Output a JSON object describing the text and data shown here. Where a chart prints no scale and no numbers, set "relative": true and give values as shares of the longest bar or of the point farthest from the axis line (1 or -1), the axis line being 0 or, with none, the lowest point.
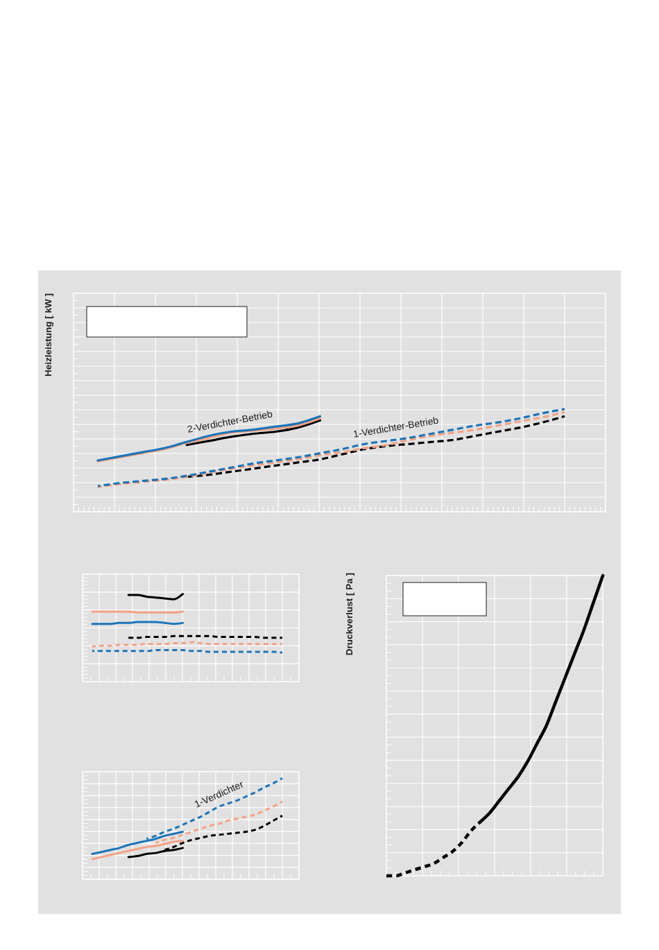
{
  "chart_data": [
    {
      "type": "line",
      "ylabel": "Heizleistung [ kW ]",
      "relative": true,
      "grid": true,
      "annotations": [
        "2-Verdichter-Betrieb",
        "1-Verdichter-Betrieb"
      ],
      "categories": [
        null,
        null,
        null,
        null,
        null,
        null,
        null,
        null,
        null,
        null,
        null,
        null,
        null,
        null,
        null,
        null,
        null,
        null,
        null,
        null,
        null,
        null
      ],
      "series": [
        {
          "color": "#000000",
          "line_style": "dashed",
          "values": [
            null,
            null,
            null,
            null,
            0.34,
            0.36,
            0.39,
            0.42,
            0.45,
            0.48,
            0.51,
            0.56,
            0.61,
            0.64,
            0.66,
            0.68,
            0.7,
            0.74,
            0.78,
            0.82,
            0.87,
            0.93
          ]
        },
        {
          "color": "#f4a283",
          "line_style": "dashed",
          "values": [
            0.24,
            0.27,
            0.29,
            0.31,
            0.34,
            0.38,
            0.42,
            0.45,
            0.48,
            0.51,
            0.55,
            0.58,
            0.62,
            0.65,
            0.7,
            0.74,
            0.77,
            0.8,
            0.84,
            0.88,
            0.92,
            0.97
          ]
        },
        {
          "color": "#1a75b9",
          "line_style": "dashed",
          "values": [
            0.25,
            0.28,
            0.3,
            0.32,
            0.35,
            0.39,
            0.43,
            0.47,
            0.5,
            0.53,
            0.57,
            0.61,
            0.66,
            0.69,
            0.72,
            0.76,
            0.8,
            0.84,
            0.87,
            0.91,
            0.96,
            1
          ]
        },
        {
          "color": "#000000",
          "line_style": "solid",
          "values": [
            null,
            null,
            null,
            null,
            0.65,
            0.69,
            0.73,
            0.76,
            0.78,
            0.82,
            0.89,
            null,
            null,
            null,
            null,
            null,
            null,
            null,
            null,
            null,
            null,
            null
          ]
        },
        {
          "color": "#f4a283",
          "line_style": "solid",
          "values": [
            0.49,
            0.53,
            0.57,
            0.61,
            0.67,
            0.72,
            0.77,
            0.79,
            0.81,
            0.84,
            0.91,
            null,
            null,
            null,
            null,
            null,
            null,
            null,
            null,
            null,
            null,
            null
          ]
        },
        {
          "color": "#1a75b9",
          "line_style": "solid",
          "values": [
            0.5,
            0.54,
            0.58,
            0.62,
            0.68,
            0.74,
            0.78,
            0.8,
            0.83,
            0.86,
            0.93,
            null,
            null,
            null,
            null,
            null,
            null,
            null,
            null,
            null,
            null,
            null
          ]
        }
      ]
    },
    {
      "type": "line",
      "relative": true,
      "grid": true,
      "categories": [
        null,
        null,
        null,
        null,
        null,
        null,
        null,
        null,
        null,
        null,
        null,
        null,
        null,
        null,
        null,
        null,
        null,
        null,
        null,
        null,
        null,
        null
      ],
      "series": [
        {
          "color": "#000000",
          "line_style": "dashed",
          "values": [
            null,
            null,
            null,
            null,
            0.5,
            0.5,
            0.51,
            0.51,
            0.51,
            0.52,
            0.52,
            0.52,
            0.52,
            0.52,
            0.51,
            0.51,
            0.51,
            0.51,
            0.51,
            0.5,
            0.5,
            0.5
          ]
        },
        {
          "color": "#f4a283",
          "line_style": "dashed",
          "values": [
            0.4,
            0.41,
            0.41,
            0.42,
            0.42,
            0.42,
            0.43,
            0.43,
            0.43,
            0.44,
            0.44,
            0.45,
            0.44,
            0.43,
            0.43,
            0.43,
            0.43,
            0.43,
            0.43,
            0.43,
            0.43,
            0.43
          ]
        },
        {
          "color": "#1a75b9",
          "line_style": "dashed",
          "values": [
            0.35,
            0.35,
            0.35,
            0.35,
            0.35,
            0.35,
            0.35,
            0.36,
            0.36,
            0.36,
            0.36,
            0.35,
            0.35,
            0.34,
            0.34,
            0.34,
            0.34,
            0.34,
            0.34,
            0.34,
            0.34,
            0.33
          ]
        },
        {
          "color": "#000000",
          "line_style": "solid",
          "values": [
            null,
            null,
            null,
            null,
            0.99,
            0.99,
            0.97,
            0.96,
            0.95,
            0.94,
            1,
            null,
            null,
            null,
            null,
            null,
            null,
            null,
            null,
            null,
            null,
            null
          ]
        },
        {
          "color": "#f4a283",
          "line_style": "solid",
          "values": [
            0.8,
            0.8,
            0.8,
            0.8,
            0.8,
            0.79,
            0.79,
            0.79,
            0.79,
            0.79,
            0.8,
            null,
            null,
            null,
            null,
            null,
            null,
            null,
            null,
            null,
            null,
            null
          ]
        },
        {
          "color": "#1a75b9",
          "line_style": "solid",
          "values": [
            0.66,
            0.66,
            0.66,
            0.67,
            0.67,
            0.68,
            0.68,
            0.68,
            0.67,
            0.66,
            0.67,
            null,
            null,
            null,
            null,
            null,
            null,
            null,
            null,
            null,
            null,
            null
          ]
        }
      ]
    },
    {
      "type": "line",
      "relative": true,
      "grid": true,
      "annotations": [
        "1-Verdichter"
      ],
      "categories": [
        null,
        null,
        null,
        null,
        null,
        null,
        null,
        null,
        null,
        null,
        null,
        null,
        null,
        null,
        null,
        null,
        null,
        null,
        null,
        null,
        null,
        null
      ],
      "series": [
        {
          "color": "#000000",
          "line_style": "dashed",
          "values": [
            null,
            null,
            null,
            null,
            null,
            null,
            null,
            null,
            0.29,
            0.32,
            0.36,
            0.39,
            0.41,
            0.43,
            0.44,
            0.45,
            0.46,
            0.47,
            0.49,
            0.53,
            0.58,
            0.63
          ]
        },
        {
          "color": "#f4a283",
          "line_style": "dashed",
          "values": [
            null,
            null,
            null,
            null,
            null,
            null,
            null,
            0.36,
            0.39,
            0.41,
            0.44,
            0.47,
            0.5,
            0.53,
            0.55,
            0.58,
            0.6,
            0.62,
            0.64,
            0.68,
            0.72,
            0.77
          ]
        },
        {
          "color": "#1a75b9",
          "line_style": "dashed",
          "values": [
            null,
            null,
            null,
            null,
            null,
            null,
            0.4,
            0.43,
            0.47,
            0.5,
            0.54,
            0.58,
            0.62,
            0.67,
            0.72,
            0.75,
            0.78,
            0.82,
            0.86,
            0.91,
            0.95,
            1
          ]
        },
        {
          "color": "#000000",
          "line_style": "solid",
          "values": [
            null,
            null,
            null,
            null,
            0.22,
            0.23,
            0.25,
            0.26,
            0.28,
            0.29,
            0.31,
            null,
            null,
            null,
            null,
            null,
            null,
            null,
            null,
            null,
            null,
            null
          ]
        },
        {
          "color": "#f4a283",
          "line_style": "solid",
          "values": [
            0.2,
            0.22,
            0.24,
            0.26,
            0.28,
            0.3,
            0.32,
            0.33,
            0.35,
            0.37,
            0.38,
            null,
            null,
            null,
            null,
            null,
            null,
            null,
            null,
            null,
            null,
            null
          ]
        },
        {
          "color": "#1a75b9",
          "line_style": "solid",
          "values": [
            0.25,
            0.27,
            0.29,
            0.31,
            0.34,
            0.36,
            0.38,
            0.4,
            0.43,
            0.45,
            0.47,
            null,
            null,
            null,
            null,
            null,
            null,
            null,
            null,
            null,
            null,
            null
          ]
        }
      ]
    },
    {
      "type": "line",
      "ylabel": "Druckverlust [ Pa ]",
      "relative": true,
      "grid": true,
      "categories": [
        null,
        null,
        null,
        null,
        null,
        null,
        null,
        null,
        null,
        null,
        null,
        null,
        null,
        null,
        null,
        null,
        null,
        null,
        null,
        null,
        null,
        null,
        null,
        null
      ],
      "series": [
        {
          "color": "#000000",
          "line_style": "dashed",
          "values": [
            0,
            0,
            0.01,
            0.02,
            0.03,
            0.04,
            0.06,
            0.08,
            0.11,
            0.15,
            0.18,
            null,
            null,
            null,
            null,
            null,
            null,
            null,
            null,
            null,
            null,
            null,
            null,
            null
          ]
        },
        {
          "color": "#000000",
          "line_style": "solid",
          "values": [
            null,
            null,
            null,
            null,
            null,
            null,
            null,
            null,
            null,
            null,
            0.18,
            0.21,
            0.25,
            0.29,
            0.33,
            0.38,
            0.44,
            0.5,
            0.58,
            0.66,
            0.74,
            0.82,
            0.91,
            1
          ]
        }
      ]
    }
  ]
}
